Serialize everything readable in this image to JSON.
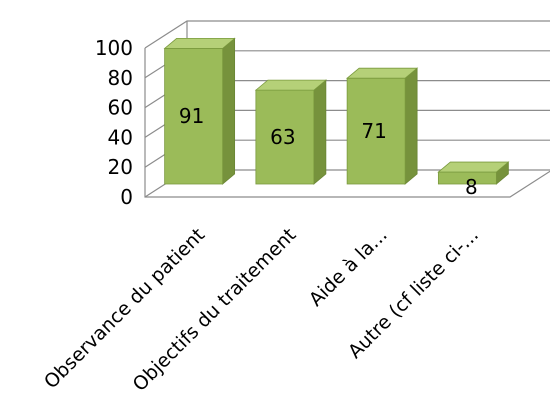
{
  "chart_data": {
    "type": "bar",
    "categories": [
      "Observance du patient",
      "Objectifs du traitement",
      "Aide à la...",
      "Autre (cf liste ci-..."
    ],
    "values": [
      91,
      63,
      71,
      8
    ],
    "data_labels": [
      "91",
      "63",
      "71",
      "8"
    ],
    "yticks": [
      "0",
      "20",
      "40",
      "60",
      "80",
      "100"
    ],
    "ylim": [
      0,
      100
    ],
    "title": "",
    "xlabel": "",
    "ylabel": "",
    "grid": true,
    "legend": "none",
    "bar_color": "#9bbb59",
    "bar_dark": "#76923c",
    "bar_top": "#b5d078"
  }
}
